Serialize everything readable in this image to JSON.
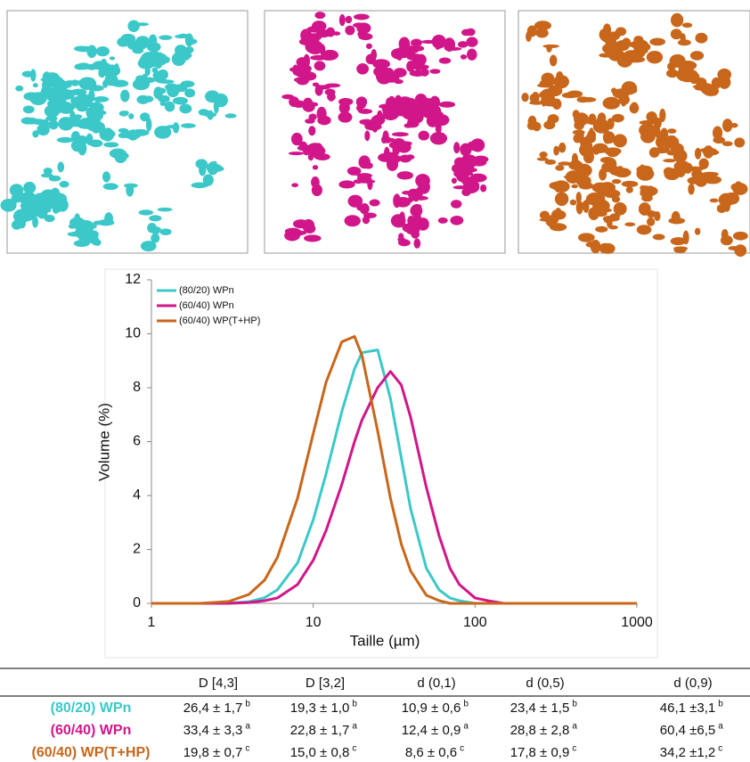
{
  "chart_data": {
    "type": "line",
    "xlabel": "Taille (µm)",
    "ylabel": "Volume (%)",
    "x": [
      1,
      2,
      3,
      4,
      5,
      6,
      8,
      10,
      12,
      15,
      18,
      20,
      25,
      30,
      35,
      40,
      50,
      60,
      70,
      80,
      100,
      120,
      150,
      200,
      1000
    ],
    "series": [
      {
        "name": "(80/20) WPn",
        "color": "#3cc8c8",
        "values": [
          0,
          0,
          0.01,
          0.06,
          0.21,
          0.5,
          1.5,
          3.1,
          4.8,
          7.1,
          8.7,
          9.3,
          9.4,
          7.6,
          5.4,
          3.5,
          1.3,
          0.5,
          0.2,
          0.1,
          0,
          0,
          0,
          0,
          0
        ]
      },
      {
        "name": "(60/40) WPn",
        "color": "#d1168a",
        "values": [
          0,
          0,
          0,
          0.03,
          0.1,
          0.2,
          0.7,
          1.6,
          2.7,
          4.4,
          6.0,
          6.8,
          8.0,
          8.6,
          8.1,
          6.9,
          4.3,
          2.5,
          1.3,
          0.7,
          0.2,
          0.1,
          0,
          0,
          0
        ]
      },
      {
        "name": "(60/40) WP(T+HP)",
        "color": "#c8671b",
        "values": [
          0,
          0,
          0.07,
          0.33,
          0.86,
          1.7,
          3.9,
          6.3,
          8.2,
          9.7,
          9.9,
          9.2,
          6.4,
          3.9,
          2.2,
          1.2,
          0.3,
          0.1,
          0,
          0,
          0,
          0,
          0,
          0,
          0
        ]
      }
    ],
    "xlim": [
      1,
      1000
    ],
    "xticks": [
      1,
      10,
      100,
      1000
    ],
    "xscale": "log",
    "ylim": [
      0,
      12
    ],
    "yticks": [
      0,
      2,
      4,
      6,
      8,
      10,
      12
    ],
    "grid": false,
    "legend": "upper left"
  },
  "table": {
    "header": [
      "D [4,3]",
      "D [3,2]",
      "d (0,1)",
      "d (0,5)",
      "d (0,9)"
    ],
    "rows": [
      {
        "label": "(80/20) WPn",
        "cells": [
          {
            "value": "26,4 ± 1,7",
            "letter": "b"
          },
          {
            "value": "19,3 ± 1,0",
            "letter": "b"
          },
          {
            "value": "10,9 ± 0,6",
            "letter": "b"
          },
          {
            "value": "23,4 ± 1,5",
            "letter": "b"
          },
          {
            "value": "46,1 ±3,1",
            "letter": "b"
          }
        ]
      },
      {
        "label": "(60/40) WPn",
        "cells": [
          {
            "value": "33,4 ± 3,3",
            "letter": "a"
          },
          {
            "value": "22,8 ± 1,7",
            "letter": "a"
          },
          {
            "value": "12,4 ± 0,9",
            "letter": "a"
          },
          {
            "value": "28,8 ± 2,8",
            "letter": "a"
          },
          {
            "value": "60,4 ±6,5",
            "letter": "a"
          }
        ]
      },
      {
        "label": "(60/40) WP(T+HP)",
        "cells": [
          {
            "value": "19,8 ± 0,7",
            "letter": "c"
          },
          {
            "value": "15,0 ± 0,8",
            "letter": "c"
          },
          {
            "value": "8,6 ± 0,6",
            "letter": "c"
          },
          {
            "value": "17,8 ± 0,9",
            "letter": "c"
          },
          {
            "value": "34,2 ±1,2",
            "letter": "c"
          }
        ]
      }
    ]
  }
}
